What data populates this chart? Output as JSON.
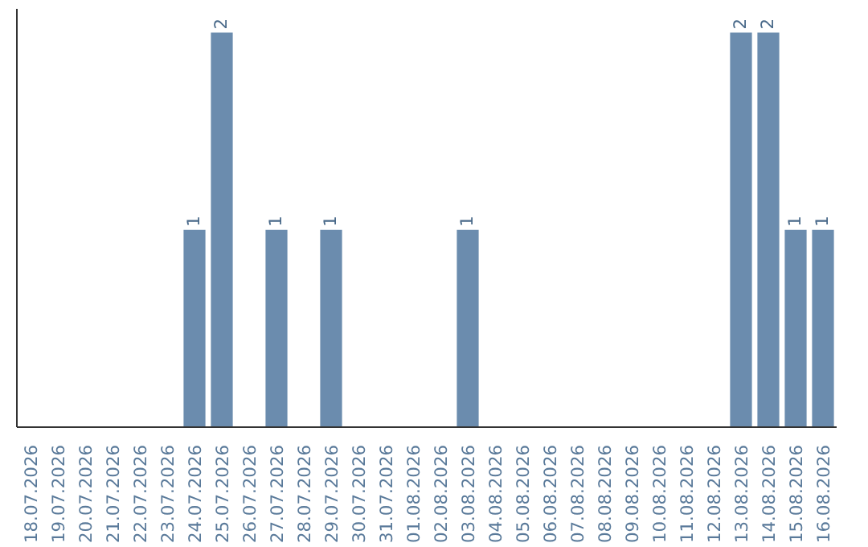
{
  "chart_data": {
    "type": "bar",
    "categories": [
      "18.07.2026",
      "19.07.2026",
      "20.07.2026",
      "21.07.2026",
      "22.07.2026",
      "23.07.2026",
      "24.07.2026",
      "25.07.2026",
      "26.07.2026",
      "27.07.2026",
      "28.07.2026",
      "29.07.2026",
      "30.07.2026",
      "31.07.2026",
      "01.08.2026",
      "02.08.2026",
      "03.08.2026",
      "04.08.2026",
      "05.08.2026",
      "06.08.2026",
      "07.08.2026",
      "08.08.2026",
      "09.08.2026",
      "10.08.2026",
      "11.08.2026",
      "12.08.2026",
      "13.08.2026",
      "14.08.2026",
      "15.08.2026",
      "16.08.2026"
    ],
    "values": [
      0,
      0,
      0,
      0,
      0,
      0,
      1,
      2,
      0,
      1,
      0,
      1,
      0,
      0,
      0,
      0,
      1,
      0,
      0,
      0,
      0,
      0,
      0,
      0,
      0,
      0,
      2,
      2,
      1,
      1
    ],
    "value_labels": [
      null,
      null,
      null,
      null,
      null,
      null,
      "1",
      "2",
      null,
      "1",
      null,
      "1",
      null,
      null,
      null,
      null,
      "1",
      null,
      null,
      null,
      null,
      null,
      null,
      null,
      null,
      null,
      "2",
      "2",
      "1",
      "1"
    ],
    "color": "#6b8cae",
    "grid": false,
    "tick_labels": "x"
  }
}
